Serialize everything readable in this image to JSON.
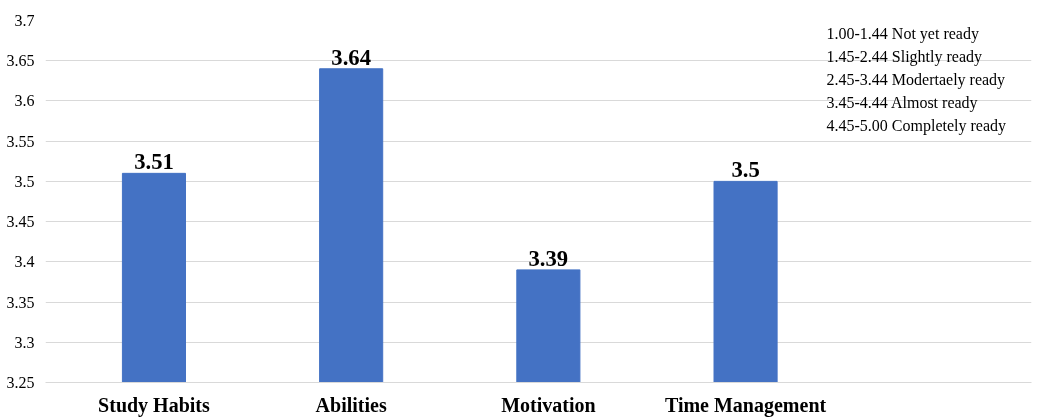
{
  "chart_data": {
    "type": "bar",
    "categories": [
      "Study Habits",
      "Abilities",
      "Motivation",
      "Time Management"
    ],
    "values": [
      3.51,
      3.64,
      3.39,
      3.5
    ],
    "color": "#4472c4",
    "ylim": [
      3.25,
      3.7
    ],
    "yticks": [
      3.25,
      3.3,
      3.35,
      3.4,
      3.45,
      3.5,
      3.55,
      3.6,
      3.65,
      3.7
    ],
    "grid": "y",
    "data_labels": true,
    "annotations": [
      "1.00-1.44 Not yet ready",
      "1.45-2.44 Slightly ready",
      "2.45-3.44 Modertaely ready",
      "3.45-4.44 Almost ready",
      "4.45-5.00 Completely ready"
    ]
  }
}
